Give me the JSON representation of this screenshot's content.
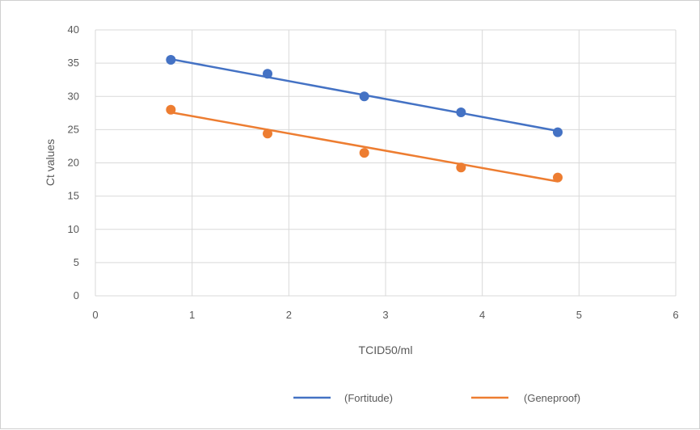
{
  "chart_data": {
    "type": "scatter",
    "title": "",
    "xlabel": "TCID50/ml",
    "ylabel": "Ct values",
    "xlim": [
      0,
      6
    ],
    "ylim": [
      0,
      40
    ],
    "xticks": [
      0,
      1,
      2,
      3,
      4,
      5,
      6
    ],
    "yticks": [
      0,
      5,
      10,
      15,
      20,
      25,
      30,
      35,
      40
    ],
    "grid": true,
    "legend_position": "bottom",
    "series": [
      {
        "name": "(Fortitude)",
        "color": "#4472c4",
        "x": [
          0.78,
          1.78,
          2.78,
          3.78,
          4.78
        ],
        "y": [
          35.5,
          33.4,
          30.0,
          27.6,
          24.6
        ],
        "trendline": {
          "x": [
            0.78,
            4.78
          ],
          "y": [
            35.6,
            24.8
          ]
        }
      },
      {
        "name": "(Geneproof)",
        "color": "#ed7d31",
        "x": [
          0.78,
          1.78,
          2.78,
          3.78,
          4.78
        ],
        "y": [
          28.0,
          24.4,
          21.5,
          19.3,
          17.8
        ],
        "trendline": {
          "x": [
            0.78,
            4.78
          ],
          "y": [
            27.6,
            17.2
          ]
        }
      }
    ]
  }
}
